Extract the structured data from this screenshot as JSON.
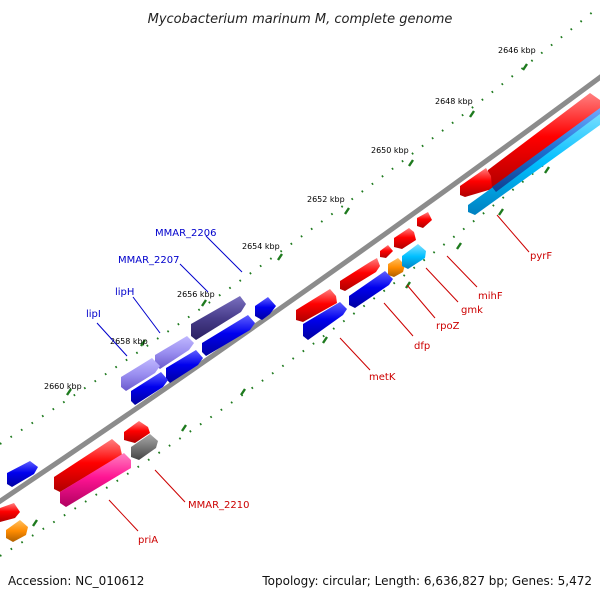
{
  "title": "Mycobacterium marinum M, complete genome",
  "ticks": [
    "2646 kbp",
    "2648 kbp",
    "2650 kbp",
    "2652 kbp",
    "2654 kbp",
    "2656 kbp",
    "2658 kbp",
    "2660 kbp"
  ],
  "genes": [
    {
      "name": "MMAR_2206",
      "color": "#0000cc"
    },
    {
      "name": "MMAR_2207",
      "color": "#0000cc"
    },
    {
      "name": "lipH",
      "color": "#0000cc"
    },
    {
      "name": "lipI",
      "color": "#0000cc"
    },
    {
      "name": "pyrF",
      "color": "#cc0000"
    },
    {
      "name": "mihF",
      "color": "#cc0000"
    },
    {
      "name": "gmk",
      "color": "#cc0000"
    },
    {
      "name": "rpoZ",
      "color": "#cc0000"
    },
    {
      "name": "dfp",
      "color": "#cc0000"
    },
    {
      "name": "metK",
      "color": "#cc0000"
    },
    {
      "name": "MMAR_2210",
      "color": "#cc0000"
    },
    {
      "name": "priA",
      "color": "#cc0000"
    }
  ],
  "footer": {
    "accession": "Accession: NC_010612",
    "info": "Topology: circular; Length: 6,636,827 bp; Genes: 5,472"
  },
  "colors": {
    "backbone": "#8c8c8c",
    "forward_cds": "#ff0000",
    "reverse_cds": "#0000ee",
    "pink_feature": "#ff1493",
    "gray_feature": "#777777",
    "orange_feature": "#ff8c00",
    "cyan_feature": "#00bfff",
    "purple_feature": "#6a5acd",
    "tick_color": "#1e7a1e"
  }
}
